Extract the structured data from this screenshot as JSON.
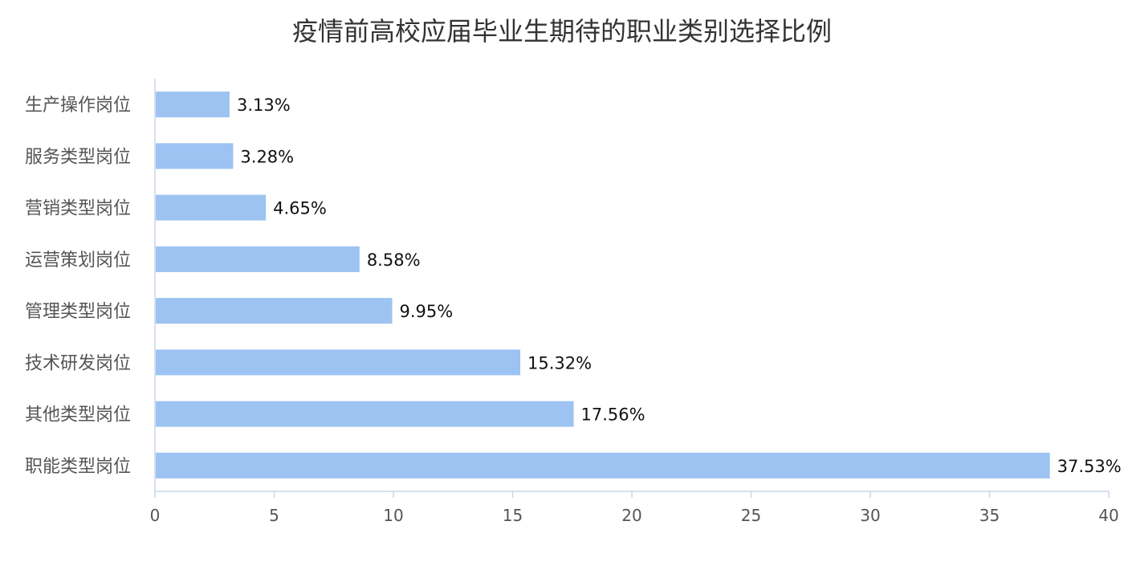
{
  "chart_data": {
    "type": "bar",
    "orientation": "horizontal",
    "title": "疫情前高校应届毕业生期待的职业类别选择比例",
    "categories": [
      "生产操作岗位",
      "服务类型岗位",
      "营销类型岗位",
      "运营策划岗位",
      "管理类型岗位",
      "技术研发岗位",
      "其他类型岗位",
      "职能类型岗位"
    ],
    "values": [
      3.13,
      3.28,
      4.65,
      8.58,
      9.95,
      15.32,
      17.56,
      37.53
    ],
    "value_labels": [
      "3.13%",
      "3.28%",
      "4.65%",
      "8.58%",
      "9.95%",
      "15.32%",
      "17.56%",
      "37.53%"
    ],
    "xlim": [
      0,
      40
    ],
    "xticks": [
      "0",
      "5",
      "10",
      "15",
      "20",
      "25",
      "30",
      "35",
      "40"
    ],
    "grid": false,
    "legend": "none",
    "bar_color": "#9dc3f2",
    "axis_color": "#c8d6ea"
  }
}
